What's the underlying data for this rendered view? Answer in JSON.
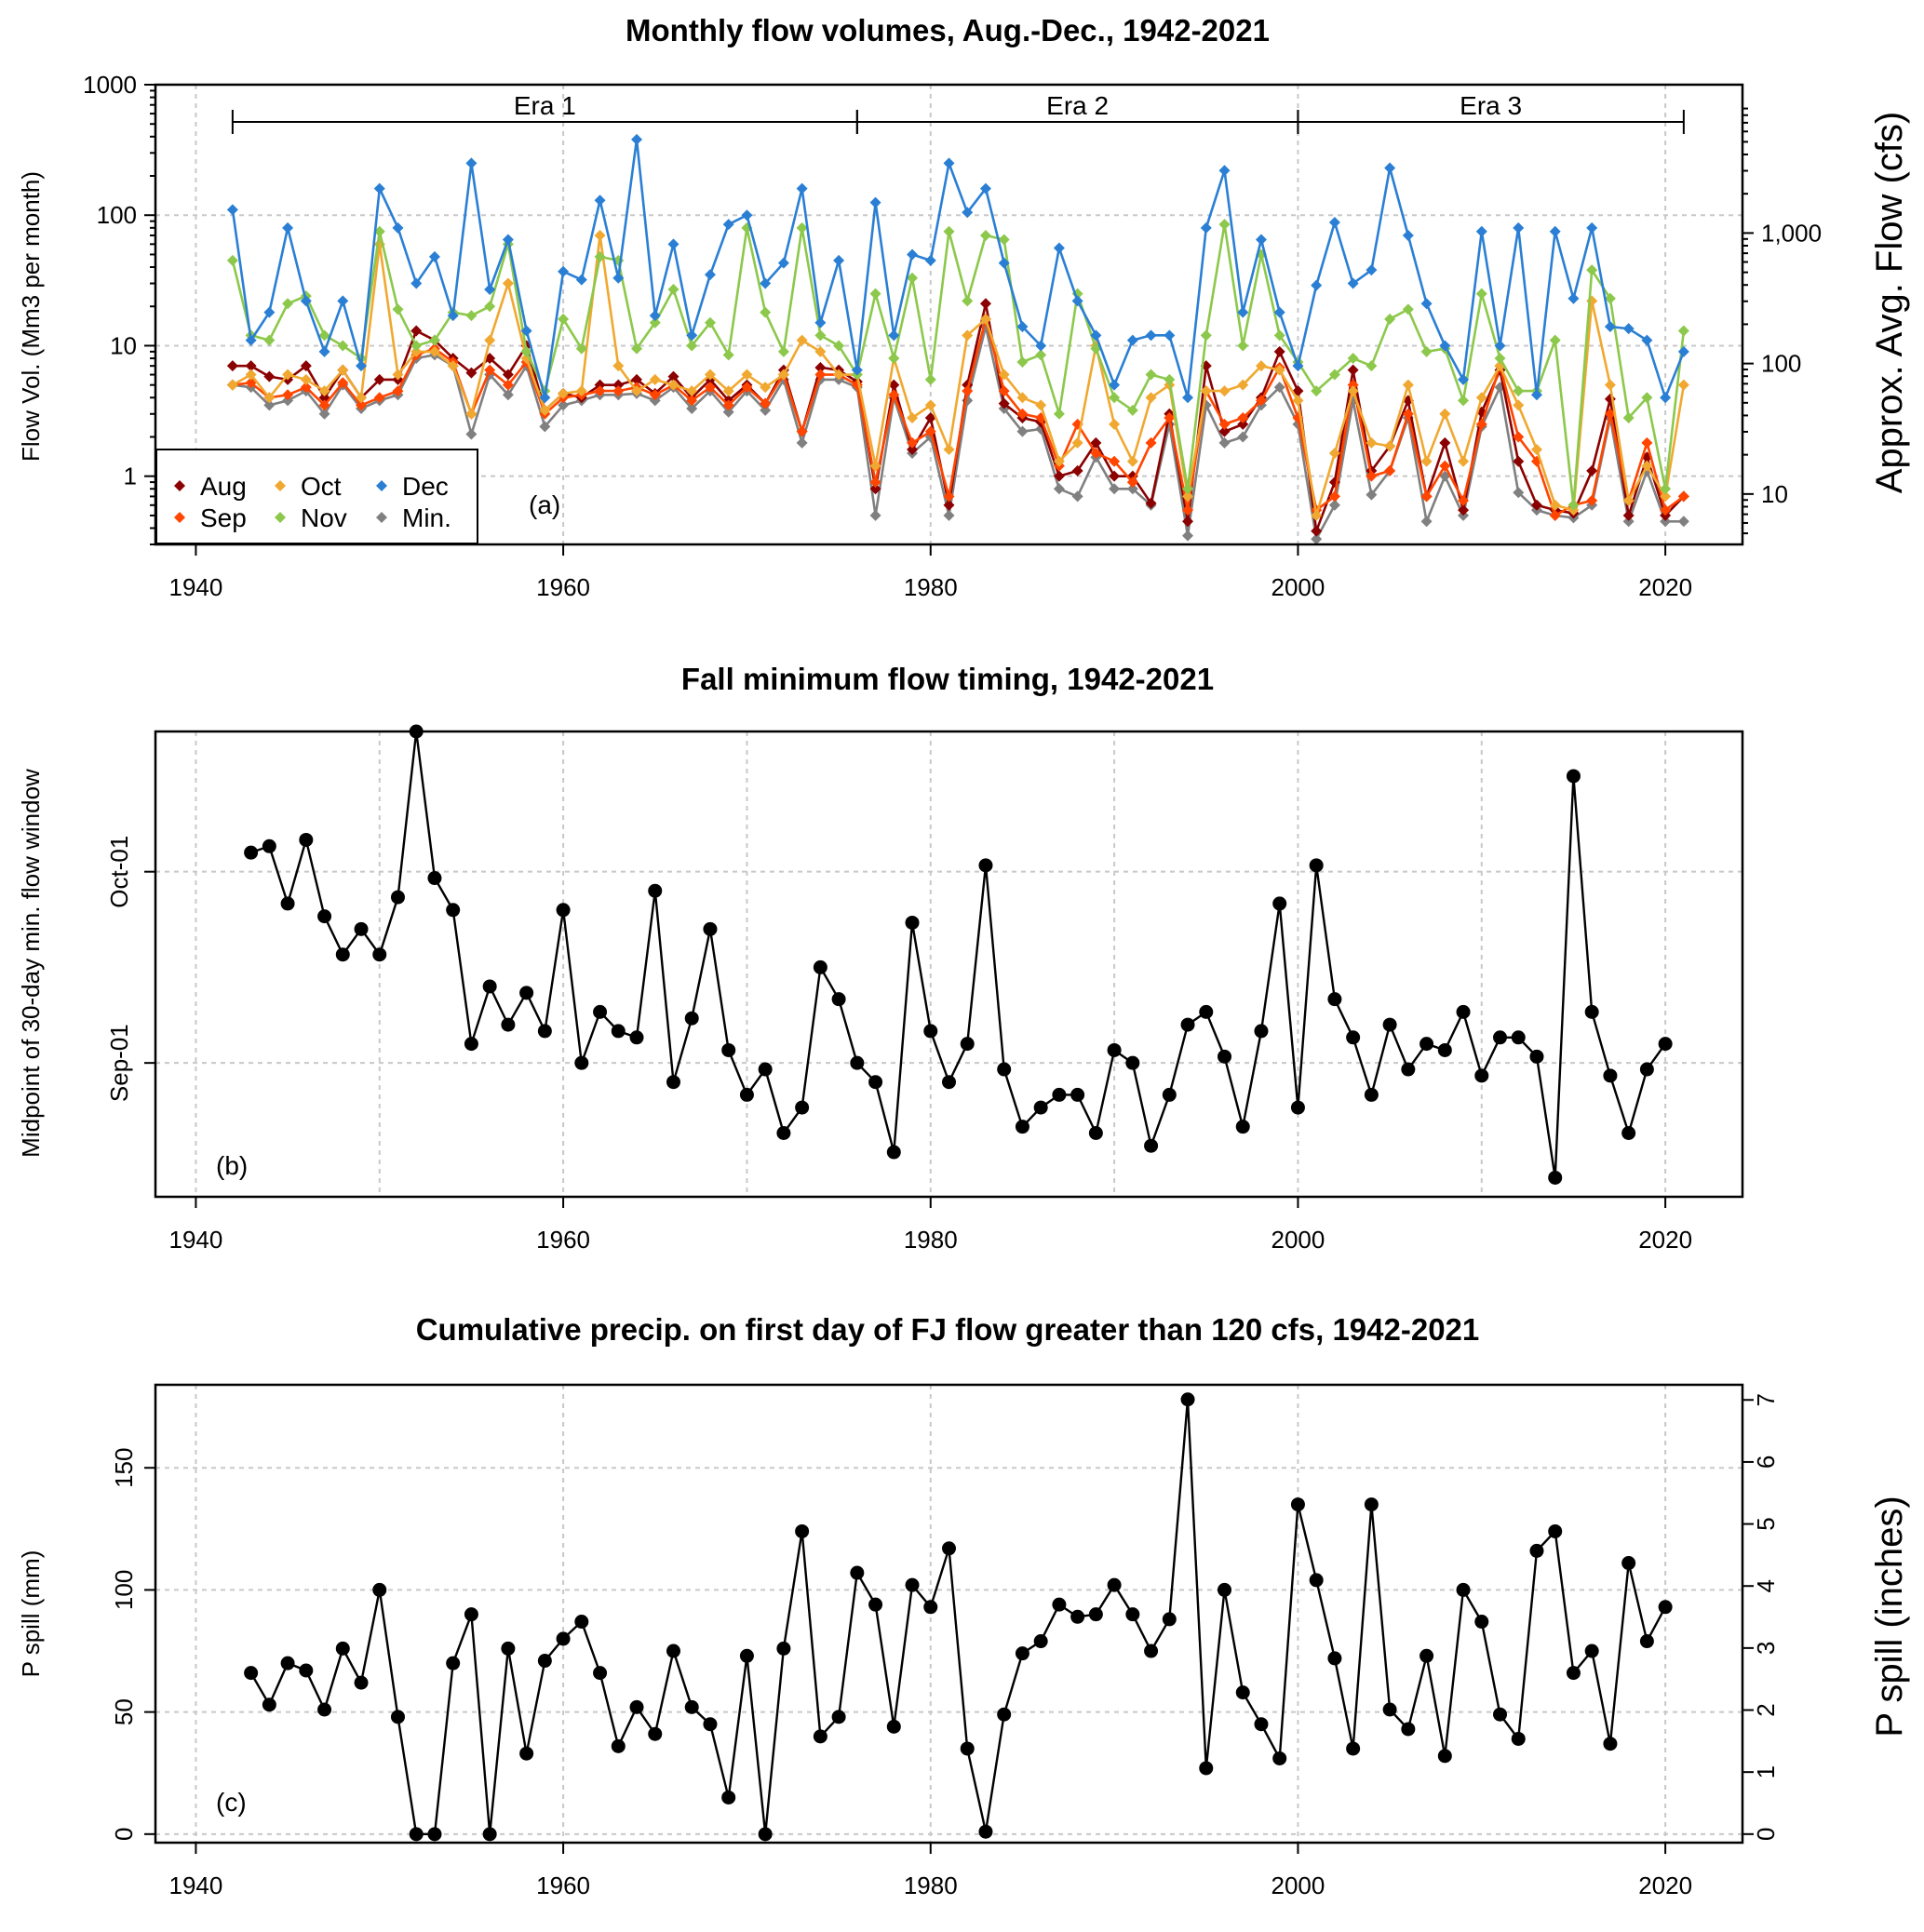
{
  "colors": {
    "Aug": "#8b0000",
    "Sep": "#ff4500",
    "Oct": "#f0a830",
    "Nov": "#8cc84b",
    "Dec": "#2a7fd4",
    "Min.": "#808080",
    "points": "#000000"
  },
  "chart_data": [
    {
      "panel": "a",
      "panel_label": "(a)",
      "type": "line",
      "title": "Monthly flow volumes, Aug.-Dec., 1942-2021",
      "xlabel": "",
      "ylabel": "Flow Vol. (Mm3 per month)",
      "y2label": "Approx. Avg. Flow (cfs)",
      "yscale": "log",
      "xlim": [
        1937.8,
        2024.2
      ],
      "ylim": [
        0.3,
        1000
      ],
      "xticks": [
        "1940",
        "1960",
        "1980",
        "2000",
        "2020"
      ],
      "yticks": [
        "1",
        "10",
        "100",
        "1000"
      ],
      "y2ticks": [
        "10",
        "100",
        "1,000"
      ],
      "grid": true,
      "legend_position": "bottom-left",
      "legend": [
        "Aug",
        "Sep",
        "Oct",
        "Nov",
        "Dec",
        "Min."
      ],
      "eras": [
        {
          "label": "Era 1",
          "start": 1942,
          "end": 1976
        },
        {
          "label": "Era 2",
          "start": 1976,
          "end": 2000
        },
        {
          "label": "Era 3",
          "start": 2000,
          "end": 2021
        }
      ],
      "x": [
        1942,
        1943,
        1944,
        1945,
        1946,
        1947,
        1948,
        1949,
        1950,
        1951,
        1952,
        1953,
        1954,
        1955,
        1956,
        1957,
        1958,
        1959,
        1960,
        1961,
        1962,
        1963,
        1964,
        1965,
        1966,
        1967,
        1968,
        1969,
        1970,
        1971,
        1972,
        1973,
        1974,
        1975,
        1976,
        1977,
        1978,
        1979,
        1980,
        1981,
        1982,
        1983,
        1984,
        1985,
        1986,
        1987,
        1988,
        1989,
        1990,
        1991,
        1992,
        1993,
        1994,
        1995,
        1996,
        1997,
        1998,
        1999,
        2000,
        2001,
        2002,
        2003,
        2004,
        2005,
        2006,
        2007,
        2008,
        2009,
        2010,
        2011,
        2012,
        2013,
        2014,
        2015,
        2016,
        2017,
        2018,
        2019,
        2020,
        2021
      ],
      "series": [
        {
          "name": "Aug",
          "values": [
            7,
            7,
            5.8,
            5.5,
            7,
            4,
            6.5,
            4,
            5.5,
            5.5,
            13,
            11,
            8,
            6.2,
            8,
            6,
            10,
            3.2,
            4.3,
            4,
            5,
            5,
            5.5,
            4.3,
            5.8,
            4,
            5.5,
            3.8,
            5,
            3.6,
            6.5,
            2.2,
            6.8,
            6.5,
            5.3,
            0.8,
            5,
            1.6,
            2.8,
            0.6,
            5,
            21,
            3.6,
            2.8,
            2.6,
            1,
            1.1,
            1.8,
            1,
            1,
            0.62,
            3,
            0.45,
            7,
            2.2,
            2.5,
            4,
            9,
            4.5,
            0.38,
            0.9,
            6.5,
            1.1,
            1.7,
            3.8,
            0.7,
            1.8,
            0.55,
            3.1,
            6.5,
            1.3,
            0.6,
            0.55,
            0.52,
            1.1,
            3.9,
            0.5,
            1.4,
            0.5,
            0.7
          ]
        },
        {
          "name": "Sep",
          "values": [
            5,
            5.2,
            4,
            4.2,
            4.8,
            3.5,
            5.2,
            3.5,
            4,
            4.5,
            8.5,
            9.5,
            7.5,
            3,
            6.5,
            5,
            7.5,
            3,
            4,
            4.2,
            4.5,
            4.5,
            4.8,
            4.2,
            5,
            3.8,
            4.8,
            3.5,
            4.8,
            3.6,
            6,
            2.2,
            6,
            6,
            5,
            0.9,
            4.2,
            1.8,
            2.2,
            0.7,
            4.5,
            16,
            4.5,
            3,
            2.8,
            1.2,
            2.5,
            1.5,
            1.3,
            0.9,
            1.8,
            2.8,
            0.55,
            4.5,
            2.5,
            2.8,
            3.8,
            6.8,
            2.8,
            0.55,
            0.7,
            5,
            1,
            1.1,
            3,
            0.7,
            1.2,
            0.65,
            2.5,
            7,
            2,
            1.3,
            0.5,
            0.6,
            0.65,
            3,
            0.65,
            1.8,
            0.55,
            0.7
          ]
        },
        {
          "name": "Oct",
          "values": [
            5,
            6,
            4,
            6,
            5.5,
            4.5,
            6.5,
            4,
            60,
            6,
            9,
            9,
            7,
            3,
            11,
            30,
            8,
            3.2,
            4.3,
            4.5,
            70,
            7,
            4.5,
            5.5,
            5,
            4.5,
            6,
            4.5,
            6,
            4.8,
            6,
            11,
            9,
            6,
            6,
            1.2,
            8,
            2.8,
            3.5,
            1.6,
            12,
            16,
            6,
            4,
            3.5,
            1.3,
            1.8,
            10,
            2.5,
            1.3,
            4,
            5,
            0.7,
            4.5,
            4.5,
            5,
            7,
            6.5,
            3.8,
            0.5,
            1.5,
            4.5,
            1.8,
            1.7,
            5,
            1.3,
            3,
            1.3,
            4,
            7,
            3.5,
            1.6,
            0.6,
            0.55,
            22,
            5,
            0.65,
            1.2,
            0.7,
            5
          ]
        },
        {
          "name": "Nov",
          "values": [
            45,
            12,
            11,
            21,
            24,
            12,
            10,
            8,
            75,
            19,
            10,
            11,
            18,
            17,
            20,
            60,
            9,
            4.5,
            16,
            9.5,
            48,
            45,
            9.5,
            15,
            27,
            10,
            15,
            8.5,
            80,
            18,
            9,
            80,
            12,
            10,
            6,
            25,
            8,
            33,
            5.5,
            75,
            22,
            70,
            65,
            7.5,
            8.5,
            3,
            25,
            9.5,
            4,
            3.2,
            6,
            5.5,
            0.8,
            12,
            85,
            10,
            50,
            12,
            7.5,
            4.5,
            6,
            8,
            7,
            16,
            19,
            9,
            9.5,
            3.8,
            25,
            8,
            4.5,
            4.5,
            11,
            0.6,
            38,
            23,
            2.8,
            4,
            0.8,
            13
          ]
        },
        {
          "name": "Dec",
          "values": [
            110,
            11,
            18,
            80,
            22,
            9,
            22,
            7,
            160,
            80,
            30,
            48,
            17,
            250,
            27,
            65,
            13,
            4,
            37,
            32,
            130,
            33,
            380,
            17,
            60,
            12,
            35,
            85,
            100,
            30,
            43,
            160,
            15,
            45,
            6.5,
            125,
            12,
            50,
            45,
            250,
            105,
            160,
            43,
            14,
            10,
            56,
            22,
            12,
            5,
            11,
            12,
            12,
            4,
            80,
            220,
            18,
            65,
            18,
            7,
            29,
            88,
            30,
            38,
            230,
            70,
            21,
            10,
            5.5,
            75,
            10,
            80,
            4.2,
            75,
            23,
            80,
            14,
            13.5,
            11,
            4,
            9
          ]
        },
        {
          "name": "Min.",
          "values": [
            5,
            4.8,
            3.5,
            3.8,
            4.5,
            3,
            5,
            3.3,
            3.8,
            4.2,
            8,
            8.5,
            7,
            2.1,
            6,
            4.2,
            7,
            2.4,
            3.5,
            3.8,
            4.2,
            4.2,
            4.3,
            3.8,
            4.8,
            3.3,
            4.5,
            3.1,
            4.5,
            3.2,
            5.5,
            1.8,
            5.5,
            5.5,
            4.8,
            0.5,
            4,
            1.5,
            2,
            0.5,
            3.8,
            14,
            3.3,
            2.2,
            2.3,
            0.8,
            0.7,
            1.4,
            0.8,
            0.8,
            0.6,
            2.5,
            0.35,
            3.5,
            1.8,
            2,
            3.5,
            4.8,
            2.5,
            0.33,
            0.6,
            3.8,
            0.72,
            1.1,
            2.8,
            0.45,
            1,
            0.5,
            2.4,
            4.8,
            0.75,
            0.55,
            0.5,
            0.48,
            0.6,
            2.8,
            0.45,
            1.1,
            0.45,
            0.45
          ]
        }
      ]
    },
    {
      "panel": "b",
      "panel_label": "(b)",
      "type": "line",
      "title": "Fall minimum flow timing, 1942-2021",
      "xlabel": "",
      "ylabel": "Midpoint of 30-day min. flow window",
      "xlim": [
        1937.8,
        2024.2
      ],
      "ylim": [
        "2001-08-11",
        "2001-10-23"
      ],
      "xticks": [
        "1940",
        "1960",
        "1980",
        "2000",
        "2020"
      ],
      "yticks": [
        "Sep-01",
        "Oct-01"
      ],
      "grid": true,
      "x": [
        1943,
        1944,
        1945,
        1946,
        1947,
        1948,
        1949,
        1950,
        1951,
        1952,
        1953,
        1954,
        1955,
        1956,
        1957,
        1958,
        1959,
        1960,
        1961,
        1962,
        1963,
        1964,
        1965,
        1966,
        1967,
        1968,
        1969,
        1970,
        1971,
        1972,
        1973,
        1974,
        1975,
        1976,
        1977,
        1978,
        1979,
        1980,
        1981,
        1982,
        1983,
        1984,
        1985,
        1986,
        1987,
        1988,
        1989,
        1990,
        1991,
        1992,
        1993,
        1994,
        1995,
        1996,
        1997,
        1998,
        1999,
        2000,
        2001,
        2002,
        2003,
        2004,
        2005,
        2006,
        2007,
        2008,
        2009,
        2010,
        2011,
        2012,
        2013,
        2014,
        2015,
        2016,
        2017,
        2018,
        2019,
        2020
      ],
      "values": [
        "2001-10-04",
        "2001-10-05",
        "2001-09-26",
        "2001-10-06",
        "2001-09-24",
        "2001-09-18",
        "2001-09-22",
        "2001-09-18",
        "2001-09-27",
        "2001-10-23",
        "2001-09-30",
        "2001-09-25",
        "2001-09-04",
        "2001-09-13",
        "2001-09-07",
        "2001-09-12",
        "2001-09-06",
        "2001-09-25",
        "2001-09-01",
        "2001-09-09",
        "2001-09-06",
        "2001-09-05",
        "2001-09-28",
        "2001-08-29",
        "2001-09-08",
        "2001-09-22",
        "2001-09-03",
        "2001-08-27",
        "2001-08-31",
        "2001-08-21",
        "2001-08-25",
        "2001-09-16",
        "2001-09-11",
        "2001-09-01",
        "2001-08-29",
        "2001-08-18",
        "2001-09-23",
        "2001-09-06",
        "2001-08-29",
        "2001-09-04",
        "2001-10-02",
        "2001-08-31",
        "2001-08-22",
        "2001-08-25",
        "2001-08-27",
        "2001-08-27",
        "2001-08-21",
        "2001-09-03",
        "2001-09-01",
        "2001-08-19",
        "2001-08-27",
        "2001-09-07",
        "2001-09-09",
        "2001-09-02",
        "2001-08-22",
        "2001-09-06",
        "2001-09-26",
        "2001-08-25",
        "2001-10-02",
        "2001-09-11",
        "2001-09-05",
        "2001-08-27",
        "2001-09-07",
        "2001-08-31",
        "2001-09-04",
        "2001-09-03",
        "2001-09-09",
        "2001-08-30",
        "2001-09-05",
        "2001-09-05",
        "2001-09-02",
        "2001-08-14",
        "2001-10-16",
        "2001-09-09",
        "2001-08-30",
        "2001-08-21",
        "2001-08-31",
        "2001-09-04"
      ]
    },
    {
      "panel": "c",
      "panel_label": "(c)",
      "type": "line",
      "title": "Cumulative precip. on first day of FJ flow greater than 120 cfs, 1942-2021",
      "xlabel": "",
      "ylabel": "P spill (mm)",
      "y2label": "P spill (inches)",
      "xlim": [
        1937.8,
        2024.2
      ],
      "ylim": [
        -3.5,
        184
      ],
      "xticks": [
        "1940",
        "1960",
        "1980",
        "2000",
        "2020"
      ],
      "yticks": [
        "0",
        "50",
        "100",
        "150"
      ],
      "y2ticks": [
        "0",
        "1",
        "2",
        "3",
        "4",
        "5",
        "6",
        "7"
      ],
      "grid": true,
      "x": [
        1943,
        1944,
        1945,
        1946,
        1947,
        1948,
        1949,
        1950,
        1951,
        1952,
        1953,
        1954,
        1955,
        1956,
        1957,
        1958,
        1959,
        1960,
        1961,
        1962,
        1963,
        1964,
        1965,
        1966,
        1967,
        1968,
        1969,
        1970,
        1971,
        1972,
        1973,
        1974,
        1975,
        1976,
        1977,
        1978,
        1979,
        1980,
        1981,
        1982,
        1983,
        1984,
        1985,
        1986,
        1987,
        1988,
        1989,
        1990,
        1991,
        1992,
        1993,
        1994,
        1995,
        1996,
        1997,
        1998,
        1999,
        2000,
        2001,
        2002,
        2003,
        2004,
        2005,
        2006,
        2007,
        2008,
        2009,
        2010,
        2011,
        2012,
        2013,
        2014,
        2015,
        2016,
        2017,
        2018,
        2019,
        2020
      ],
      "values": [
        66,
        53,
        70,
        67,
        51,
        76,
        62,
        100,
        48,
        0,
        0,
        70,
        90,
        0,
        76,
        33,
        71,
        80,
        87,
        66,
        36,
        52,
        41,
        75,
        52,
        45,
        15,
        73,
        0,
        76,
        124,
        40,
        48,
        107,
        94,
        44,
        102,
        93,
        117,
        35,
        1,
        49,
        74,
        79,
        94,
        89,
        90,
        102,
        90,
        75,
        88,
        178,
        27,
        100,
        58,
        45,
        31,
        135,
        104,
        72,
        35,
        135,
        51,
        43,
        73,
        32,
        100,
        87,
        49,
        39,
        116,
        124,
        66,
        75,
        37,
        111,
        79,
        93
      ]
    }
  ]
}
